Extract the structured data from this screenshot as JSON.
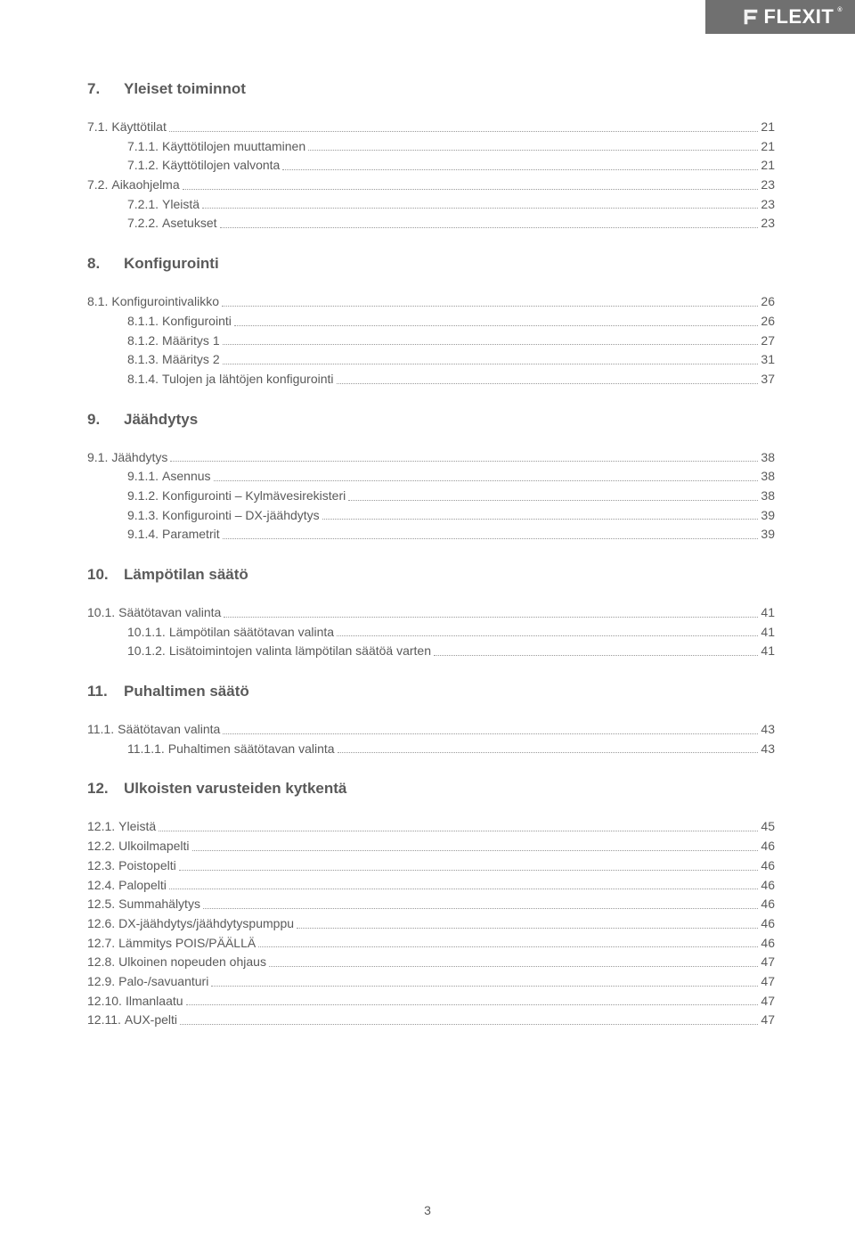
{
  "brand": "FLEXIT",
  "page_number": "3",
  "sections": [
    {
      "num": "7.",
      "title": "Yleiset toiminnot",
      "entries": [
        {
          "lvl": 1,
          "num": "7.1.",
          "label": "Käyttötilat",
          "page": "21"
        },
        {
          "lvl": 2,
          "num": "7.1.1.",
          "label": "Käyttötilojen muuttaminen",
          "page": "21"
        },
        {
          "lvl": 2,
          "num": "7.1.2.",
          "label": "Käyttötilojen valvonta",
          "page": "21"
        },
        {
          "lvl": 1,
          "num": "7.2.",
          "label": "Aikaohjelma",
          "page": "23"
        },
        {
          "lvl": 2,
          "num": "7.2.1.",
          "label": "Yleistä",
          "page": "23"
        },
        {
          "lvl": 2,
          "num": "7.2.2.",
          "label": "Asetukset",
          "page": "23"
        }
      ]
    },
    {
      "num": "8.",
      "title": "Konfigurointi",
      "entries": [
        {
          "lvl": 1,
          "num": "8.1.",
          "label": "Konfigurointivalikko",
          "page": "26"
        },
        {
          "lvl": 2,
          "num": "8.1.1.",
          "label": "Konfigurointi",
          "page": "26"
        },
        {
          "lvl": 2,
          "num": "8.1.2.",
          "label": "Määritys 1",
          "page": "27"
        },
        {
          "lvl": 2,
          "num": "8.1.3.",
          "label": "Määritys 2",
          "page": "31"
        },
        {
          "lvl": 2,
          "num": "8.1.4.",
          "label": "Tulojen ja lähtöjen konfigurointi",
          "page": "37"
        }
      ]
    },
    {
      "num": "9.",
      "title": "Jäähdytys",
      "entries": [
        {
          "lvl": 1,
          "num": "9.1.",
          "label": "Jäähdytys",
          "page": "38"
        },
        {
          "lvl": 2,
          "num": "9.1.1.",
          "label": "Asennus",
          "page": "38"
        },
        {
          "lvl": 2,
          "num": "9.1.2.",
          "label": "Konfigurointi – Kylmävesirekisteri",
          "page": "38"
        },
        {
          "lvl": 2,
          "num": "9.1.3.",
          "label": "Konfigurointi – DX-jäähdytys",
          "page": "39"
        },
        {
          "lvl": 2,
          "num": "9.1.4.",
          "label": "Parametrit",
          "page": "39"
        }
      ]
    },
    {
      "num": "10.",
      "title": "Lämpötilan säätö",
      "entries": [
        {
          "lvl": 1,
          "num": "10.1.",
          "label": "Säätötavan valinta",
          "page": "41"
        },
        {
          "lvl": 2,
          "num": "10.1.1.",
          "label": "Lämpötilan säätötavan valinta",
          "page": "41"
        },
        {
          "lvl": 2,
          "num": "10.1.2.",
          "label": "Lisätoimintojen valinta lämpötilan säätöä varten",
          "page": "41"
        }
      ]
    },
    {
      "num": "11.",
      "title": "Puhaltimen säätö",
      "entries": [
        {
          "lvl": 1,
          "num": "11.1.",
          "label": "Säätötavan valinta",
          "page": "43"
        },
        {
          "lvl": 2,
          "num": "11.1.1.",
          "label": "Puhaltimen säätötavan valinta",
          "page": "43"
        }
      ]
    },
    {
      "num": "12.",
      "title": "Ulkoisten varusteiden kytkentä",
      "entries": [
        {
          "lvl": 1,
          "num": "12.1.",
          "label": "Yleistä",
          "page": "45"
        },
        {
          "lvl": 1,
          "num": "12.2.",
          "label": "Ulkoilmapelti",
          "page": "46"
        },
        {
          "lvl": 1,
          "num": "12.3.",
          "label": "Poistopelti",
          "page": "46"
        },
        {
          "lvl": 1,
          "num": "12.4.",
          "label": "Palopelti",
          "page": "46"
        },
        {
          "lvl": 1,
          "num": "12.5.",
          "label": "Summahälytys",
          "page": "46"
        },
        {
          "lvl": 1,
          "num": "12.6.",
          "label": "DX-jäähdytys/jäähdytyspumppu",
          "page": "46"
        },
        {
          "lvl": 1,
          "num": "12.7.",
          "label": "Lämmitys POIS/PÄÄLLÄ",
          "page": "46"
        },
        {
          "lvl": 1,
          "num": "12.8.",
          "label": "Ulkoinen nopeuden ohjaus",
          "page": "47"
        },
        {
          "lvl": 1,
          "num": "12.9.",
          "label": "Palo-/savuanturi",
          "page": "47"
        },
        {
          "lvl": 1,
          "num": "12.10.",
          "label": "Ilmanlaatu",
          "page": "47"
        },
        {
          "lvl": 1,
          "num": "12.11.",
          "label": "AUX-pelti",
          "page": "47"
        }
      ]
    }
  ]
}
